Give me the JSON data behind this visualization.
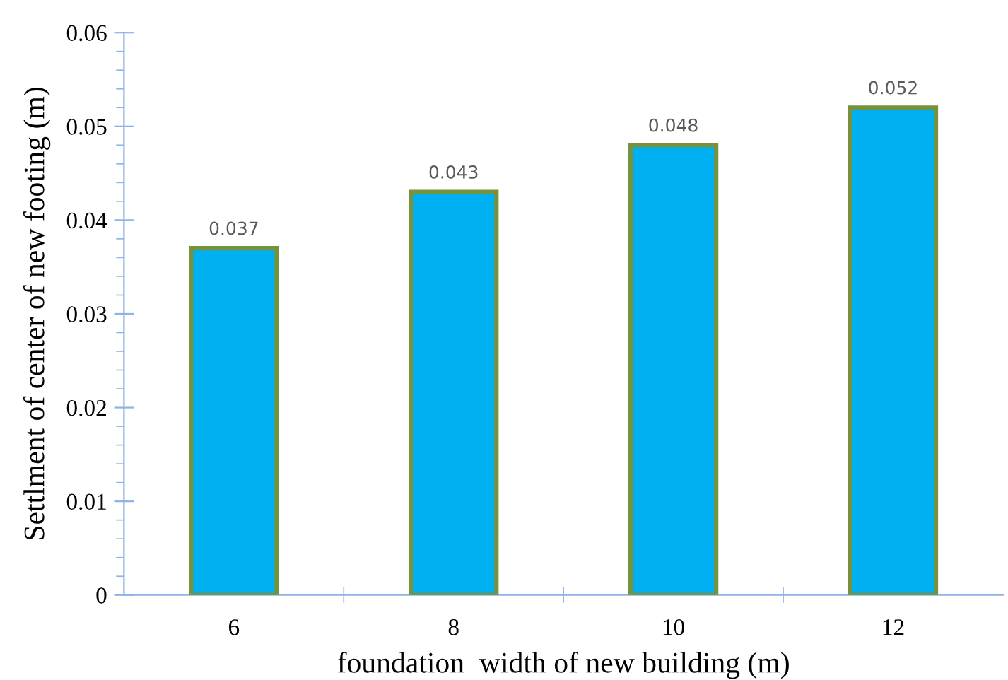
{
  "chart_data": {
    "type": "bar",
    "xlabel": "foundation  width of new building (m)",
    "ylabel": "Settlment of center of new footing (m)",
    "categories": [
      "6",
      "8",
      "10",
      "12"
    ],
    "values": [
      0.037,
      0.043,
      0.048,
      0.052
    ],
    "color": "#00b0f0",
    "ylim": [
      0,
      0.06
    ],
    "yticks": [
      0,
      0.01,
      0.02,
      0.03,
      0.04,
      0.05,
      0.06
    ],
    "data_labels": true,
    "grid": false
  }
}
